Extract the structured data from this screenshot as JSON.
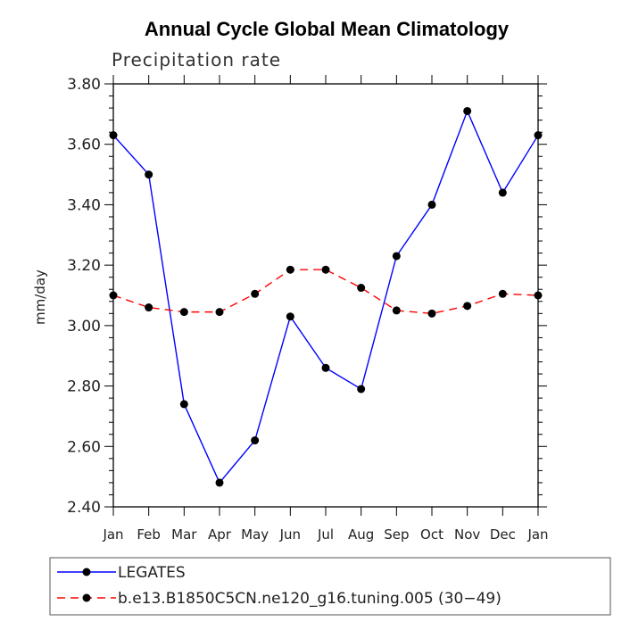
{
  "chart_data": {
    "type": "line",
    "title": "Annual Cycle Global Mean Climatology",
    "subtitle": "Precipitation rate",
    "xlabel": "",
    "ylabel": "mm/day",
    "categories": [
      "Jan",
      "Feb",
      "Mar",
      "Apr",
      "May",
      "Jun",
      "Jul",
      "Aug",
      "Sep",
      "Oct",
      "Nov",
      "Dec",
      "Jan"
    ],
    "ylim": [
      2.4,
      3.8
    ],
    "yticks": [
      "2.40",
      "2.60",
      "2.80",
      "3.00",
      "3.20",
      "3.40",
      "3.60",
      "3.80"
    ],
    "ytick_values": [
      2.4,
      2.6,
      2.8,
      3.0,
      3.2,
      3.4,
      3.6,
      3.8
    ],
    "series": [
      {
        "name": "LEGATES",
        "color": "#0000ff",
        "dash": "solid",
        "values": [
          3.63,
          3.5,
          2.74,
          2.48,
          2.62,
          3.03,
          2.86,
          2.79,
          3.23,
          3.4,
          3.71,
          3.44,
          3.63
        ]
      },
      {
        "name": "b.e13.B1850C5CN.ne120_g16.tuning.005 (30−49)",
        "color": "#ff0000",
        "dash": "dashed",
        "values": [
          3.1,
          3.06,
          3.045,
          3.045,
          3.105,
          3.185,
          3.185,
          3.125,
          3.05,
          3.04,
          3.065,
          3.105,
          3.1
        ]
      }
    ],
    "legend": "bottom-left"
  }
}
